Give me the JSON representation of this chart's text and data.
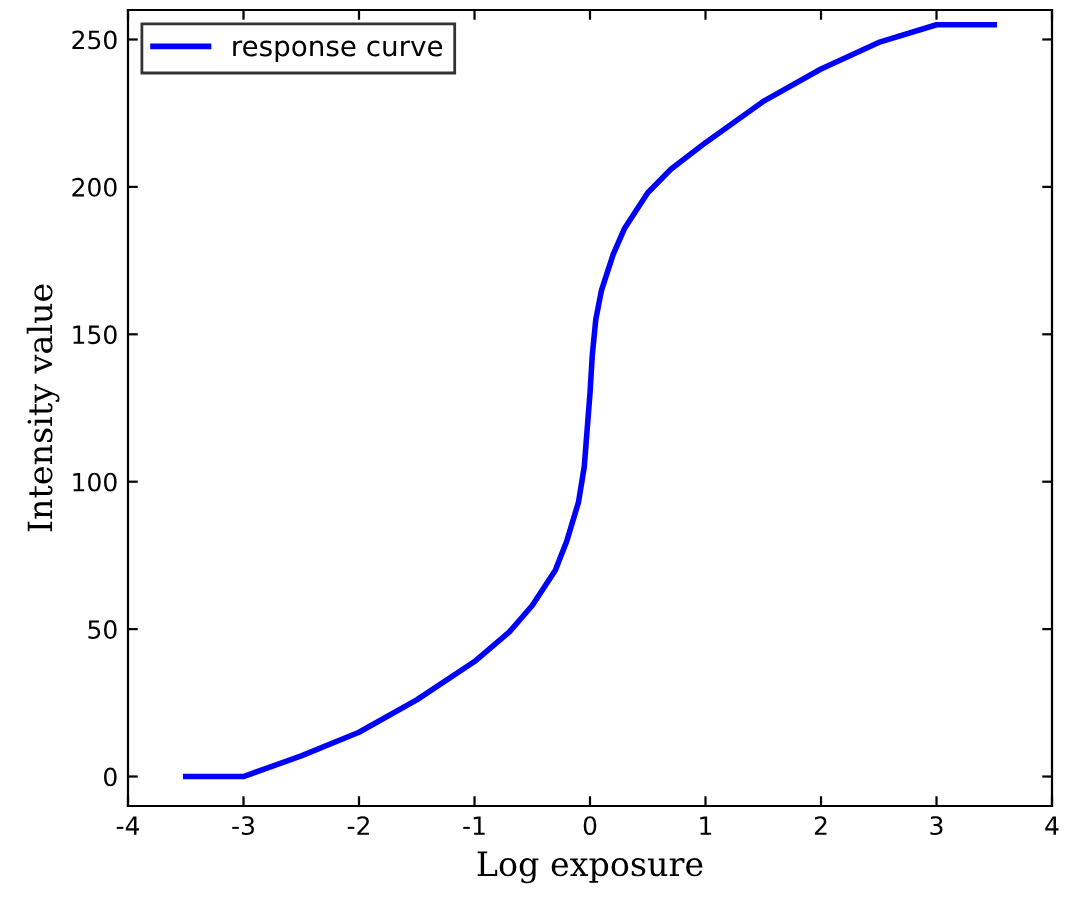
{
  "chart_data": {
    "type": "line",
    "xlabel": "Log exposure",
    "ylabel": "Intensity value",
    "series": [
      {
        "name": "response curve",
        "color": "#0000ff",
        "x": [
          -3.5,
          -3.0,
          -2.5,
          -2.0,
          -1.5,
          -1.0,
          -0.7,
          -0.5,
          -0.3,
          -0.2,
          -0.1,
          -0.05,
          0.0,
          0.02,
          0.05,
          0.1,
          0.2,
          0.3,
          0.5,
          0.7,
          1.0,
          1.5,
          2.0,
          2.5,
          3.0,
          3.5
        ],
        "values": [
          0,
          0,
          7,
          15,
          26,
          39,
          49,
          58,
          70,
          80,
          93,
          105,
          130,
          143,
          155,
          165,
          177,
          186,
          198,
          206,
          215,
          229,
          240,
          249,
          255,
          255
        ]
      }
    ],
    "xlim": [
      -4,
      4
    ],
    "xticks": [
      -4,
      -3,
      -2,
      -1,
      0,
      1,
      2,
      3,
      4
    ],
    "ylim": [
      -10,
      260
    ],
    "yticks": [
      0,
      50,
      100,
      150,
      200,
      250
    ],
    "legend": "top left",
    "grid": false,
    "line_style": "solid",
    "marker": "none"
  }
}
